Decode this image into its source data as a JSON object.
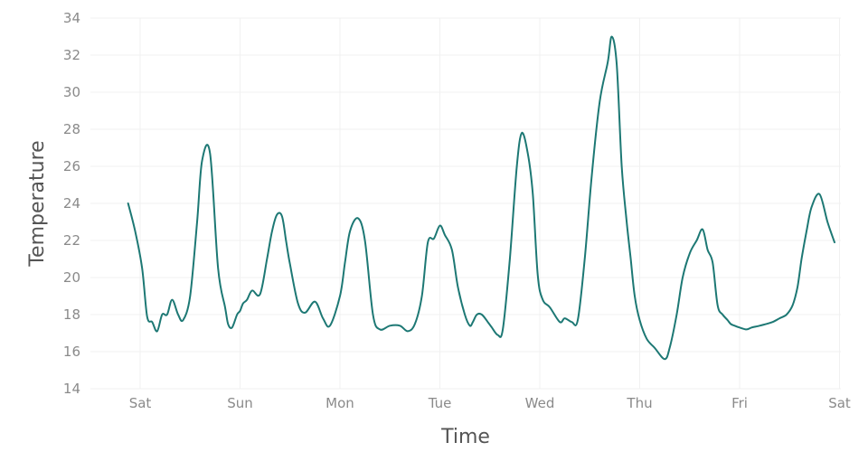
{
  "chart_data": {
    "type": "line",
    "xlabel": "Time",
    "ylabel": "Temperature",
    "ylim": [
      14,
      34
    ],
    "y_ticks": [
      14,
      16,
      18,
      20,
      22,
      24,
      26,
      28,
      30,
      32,
      34
    ],
    "x_tick_labels": [
      "Sat",
      "Sun",
      "Mon",
      "Tue",
      "Wed",
      "Thu",
      "Fri",
      "Sat"
    ],
    "xlim_days": [
      -0.1,
      7.0
    ],
    "grid": true,
    "line_color": "#1d7874",
    "series": [
      {
        "x": [
          -0.12,
          -0.05,
          0.02,
          0.07,
          0.12,
          0.17,
          0.22,
          0.27,
          0.32,
          0.38,
          0.43,
          0.5,
          0.57,
          0.62,
          0.7,
          0.78,
          0.85,
          0.88,
          0.92,
          0.97,
          1.0,
          1.03,
          1.07,
          1.12,
          1.2,
          1.27,
          1.32,
          1.37,
          1.42,
          1.46,
          1.5,
          1.58,
          1.65,
          1.75,
          1.83,
          1.9,
          2.0,
          2.05,
          2.1,
          2.18,
          2.25,
          2.33,
          2.4,
          2.5,
          2.6,
          2.68,
          2.75,
          2.82,
          2.88,
          2.94,
          3.0,
          3.05,
          3.12,
          3.18,
          3.25,
          3.3,
          3.33,
          3.37,
          3.42,
          3.48,
          3.52,
          3.58,
          3.63,
          3.7,
          3.77,
          3.82,
          3.88,
          3.93,
          3.98,
          4.03,
          4.1,
          4.2,
          4.25,
          4.32,
          4.38,
          4.45,
          4.52,
          4.6,
          4.68,
          4.72,
          4.77,
          4.82,
          4.87,
          4.91,
          4.95,
          5.0,
          5.07,
          5.15,
          5.25,
          5.3,
          5.37,
          5.43,
          5.5,
          5.57,
          5.63,
          5.68,
          5.73,
          5.78,
          5.83,
          5.88,
          5.91,
          5.95,
          6.0,
          6.07,
          6.12,
          6.2,
          6.27,
          6.33,
          6.4,
          6.47,
          6.53,
          6.58,
          6.62,
          6.67,
          6.72,
          6.8,
          6.88,
          6.95
        ],
        "y": [
          24.0,
          22.5,
          20.5,
          17.9,
          17.6,
          17.1,
          18.0,
          18.0,
          18.8,
          18.0,
          17.7,
          19.0,
          23.0,
          26.3,
          26.7,
          20.5,
          18.4,
          17.5,
          17.3,
          18.0,
          18.2,
          18.6,
          18.8,
          19.3,
          19.1,
          21.0,
          22.5,
          23.4,
          23.3,
          22.0,
          20.7,
          18.6,
          18.1,
          18.7,
          17.8,
          17.4,
          19.0,
          20.8,
          22.5,
          23.2,
          22.0,
          18.0,
          17.2,
          17.4,
          17.4,
          17.1,
          17.5,
          19.0,
          21.9,
          22.1,
          22.8,
          22.3,
          21.5,
          19.5,
          18.0,
          17.4,
          17.6,
          18.0,
          18.0,
          17.6,
          17.3,
          16.9,
          17.2,
          21.0,
          26.0,
          27.8,
          26.7,
          24.5,
          20.1,
          18.8,
          18.4,
          17.6,
          17.8,
          17.6,
          17.7,
          21.0,
          25.5,
          29.5,
          31.6,
          33.0,
          31.5,
          26.0,
          23.0,
          21.0,
          19.0,
          17.7,
          16.7,
          16.2,
          15.6,
          16.2,
          18.0,
          20.0,
          21.3,
          22.0,
          22.6,
          21.5,
          20.8,
          18.5,
          18.0,
          17.7,
          17.5,
          17.4,
          17.3,
          17.2,
          17.3,
          17.4,
          17.5,
          17.6,
          17.8,
          18.0,
          18.5,
          19.5,
          21.0,
          22.5,
          23.8,
          24.5,
          23.0,
          21.9
        ]
      }
    ]
  }
}
